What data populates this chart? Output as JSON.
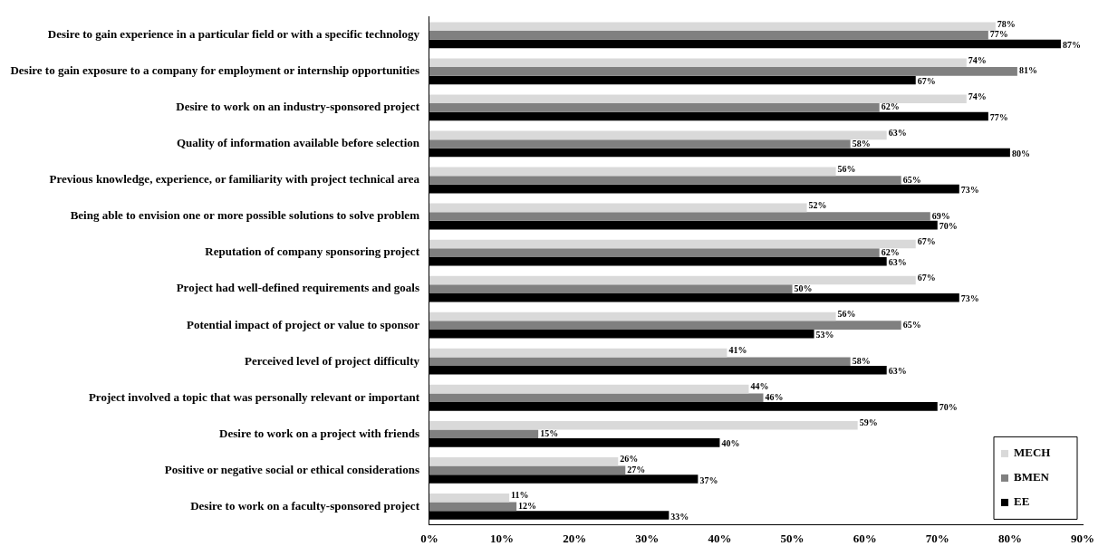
{
  "chart_data": {
    "type": "bar",
    "orientation": "horizontal",
    "categories": [
      "Desire to gain experience in a particular field or with a specific technology",
      "Desire to gain exposure to a company for employment or internship opportunities",
      "Desire to work on an industry-sponsored project",
      "Quality of information available before selection",
      "Previous knowledge, experience, or familiarity with project technical area",
      "Being able to envision one or more possible solutions to solve problem",
      "Reputation of company sponsoring project",
      "Project had well-defined requirements and goals",
      "Potential impact of project or value to sponsor",
      "Perceived level of project difficulty",
      "Project involved a topic that was personally relevant or important",
      "Desire to work on a project with friends",
      "Positive or negative social or ethical considerations",
      "Desire to work on a faculty-sponsored project"
    ],
    "series": [
      {
        "name": "MECH",
        "color": "#d9d9d9",
        "values": [
          78,
          74,
          74,
          63,
          56,
          52,
          67,
          67,
          56,
          41,
          44,
          59,
          26,
          11
        ],
        "value_labels": [
          "78%",
          "74%",
          "74%",
          "63%",
          "56%",
          "52%",
          "67%",
          "67%",
          "56%",
          "41%",
          "44%",
          "59%",
          "26%",
          "11%"
        ]
      },
      {
        "name": "BMEN",
        "color": "#808080",
        "values": [
          77,
          81,
          62,
          58,
          65,
          69,
          62,
          50,
          65,
          58,
          46,
          15,
          27,
          12
        ],
        "value_labels": [
          "77%",
          "81%",
          "62%",
          "58%",
          "65%",
          "69%",
          "62%",
          "50%",
          "65%",
          "58%",
          "46%",
          "15%",
          "27%",
          "12%"
        ]
      },
      {
        "name": "EE",
        "color": "#000000",
        "values": [
          87,
          67,
          77,
          80,
          73,
          70,
          63,
          73,
          53,
          63,
          70,
          40,
          37,
          33
        ],
        "value_labels": [
          "87%",
          "67%",
          "77%",
          "80%",
          "73%",
          "70%",
          "63%",
          "73%",
          "53%",
          "63%",
          "70%",
          "40%",
          "37%",
          "33%"
        ]
      }
    ],
    "xlim": [
      0,
      90
    ],
    "xticks": [
      {
        "value": 0,
        "label": "0%"
      },
      {
        "value": 10,
        "label": "10%"
      },
      {
        "value": 20,
        "label": "20%"
      },
      {
        "value": 30,
        "label": "30%"
      },
      {
        "value": 40,
        "label": "40%"
      },
      {
        "value": 50,
        "label": "50%"
      },
      {
        "value": 60,
        "label": "60%"
      },
      {
        "value": 70,
        "label": "70%"
      },
      {
        "value": 80,
        "label": "80%"
      },
      {
        "value": 90,
        "label": "90%"
      }
    ],
    "grid": false,
    "legend": "bottom right"
  }
}
